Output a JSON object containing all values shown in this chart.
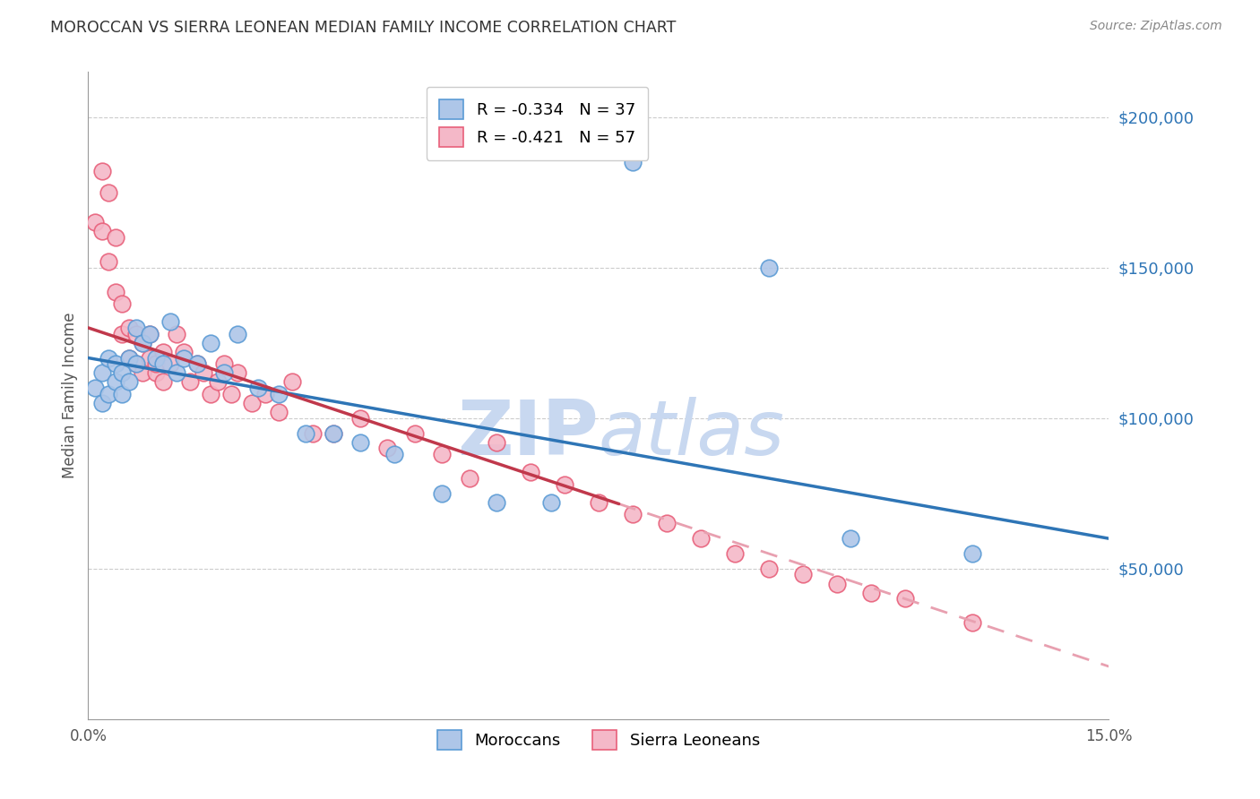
{
  "title": "MOROCCAN VS SIERRA LEONEAN MEDIAN FAMILY INCOME CORRELATION CHART",
  "source": "Source: ZipAtlas.com",
  "ylabel": "Median Family Income",
  "yticks": [
    0,
    50000,
    100000,
    150000,
    200000
  ],
  "xmin": 0.0,
  "xmax": 0.15,
  "ymin": 0,
  "ymax": 215000,
  "moroccan_color": "#aec6e8",
  "moroccan_edge": "#5b9bd5",
  "sierra_color": "#f4b8c8",
  "sierra_edge": "#e8607a",
  "trend_moroccan_color": "#2e75b6",
  "trend_sierra_solid_color": "#c0384b",
  "trend_sierra_dash_color": "#e8a0b0",
  "legend_R_moroccan": "R = -0.334",
  "legend_N_moroccan": "N = 37",
  "legend_R_sierra": "R = -0.421",
  "legend_N_sierra": "N = 57",
  "moroccan_x": [
    0.001,
    0.002,
    0.002,
    0.003,
    0.003,
    0.004,
    0.004,
    0.005,
    0.005,
    0.006,
    0.006,
    0.007,
    0.007,
    0.008,
    0.009,
    0.01,
    0.011,
    0.012,
    0.013,
    0.014,
    0.016,
    0.018,
    0.02,
    0.022,
    0.025,
    0.028,
    0.032,
    0.036,
    0.04,
    0.045,
    0.052,
    0.06,
    0.068,
    0.08,
    0.1,
    0.112,
    0.13
  ],
  "moroccan_y": [
    110000,
    115000,
    105000,
    120000,
    108000,
    118000,
    112000,
    115000,
    108000,
    120000,
    112000,
    130000,
    118000,
    125000,
    128000,
    120000,
    118000,
    132000,
    115000,
    120000,
    118000,
    125000,
    115000,
    128000,
    110000,
    108000,
    95000,
    95000,
    92000,
    88000,
    75000,
    72000,
    72000,
    185000,
    150000,
    60000,
    55000
  ],
  "sierra_x": [
    0.001,
    0.002,
    0.002,
    0.003,
    0.003,
    0.004,
    0.004,
    0.005,
    0.005,
    0.006,
    0.006,
    0.007,
    0.007,
    0.008,
    0.008,
    0.009,
    0.009,
    0.01,
    0.01,
    0.011,
    0.011,
    0.012,
    0.013,
    0.014,
    0.015,
    0.016,
    0.017,
    0.018,
    0.019,
    0.02,
    0.021,
    0.022,
    0.024,
    0.026,
    0.028,
    0.03,
    0.033,
    0.036,
    0.04,
    0.044,
    0.048,
    0.052,
    0.056,
    0.06,
    0.065,
    0.07,
    0.075,
    0.08,
    0.085,
    0.09,
    0.095,
    0.1,
    0.105,
    0.11,
    0.115,
    0.12,
    0.13
  ],
  "sierra_y": [
    165000,
    182000,
    162000,
    175000,
    152000,
    160000,
    142000,
    138000,
    128000,
    130000,
    120000,
    128000,
    118000,
    125000,
    115000,
    120000,
    128000,
    115000,
    118000,
    122000,
    112000,
    118000,
    128000,
    122000,
    112000,
    118000,
    115000,
    108000,
    112000,
    118000,
    108000,
    115000,
    105000,
    108000,
    102000,
    112000,
    95000,
    95000,
    100000,
    90000,
    95000,
    88000,
    80000,
    92000,
    82000,
    78000,
    72000,
    68000,
    65000,
    60000,
    55000,
    50000,
    48000,
    45000,
    42000,
    40000,
    32000
  ],
  "watermark_zip": "ZIP",
  "watermark_atlas": "atlas",
  "watermark_color": "#c8d8f0"
}
